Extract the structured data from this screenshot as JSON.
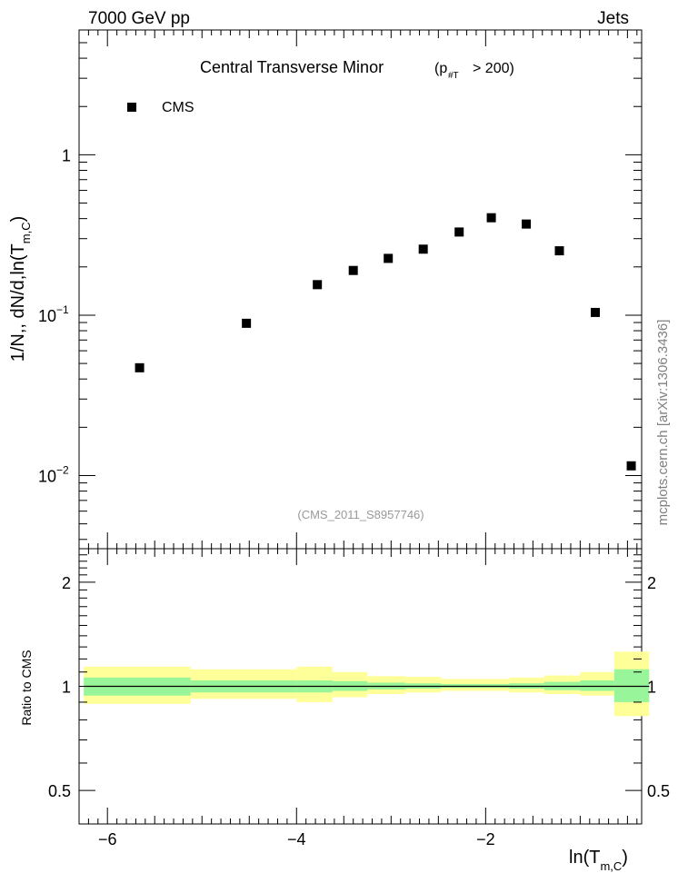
{
  "header": {
    "left": "7000 GeV pp",
    "right": "Jets"
  },
  "plot_title": {
    "main": "Central Transverse Minor",
    "cut_open": "(p",
    "cut_sub": "#T",
    "cut_close": "> 200)"
  },
  "legend": {
    "label": "CMS",
    "marker": "filled-square"
  },
  "watermark": "(CMS_2011_S8957746)",
  "side_label": "mcplots.cern.ch [arXiv:1306.3436]",
  "ylabel_main": {
    "prefix": "1/N",
    "middle": ",, dN/d,ln(T",
    "sub": "m,C",
    "close": ")"
  },
  "ylabel_ratio": "Ratio to CMS",
  "xlabel": {
    "prefix": "ln(T",
    "sub": "m,C",
    "close": ")"
  },
  "ticks": {
    "x": [
      "−6",
      "−4",
      "−2"
    ],
    "main_y": [
      {
        "value": 1,
        "text": "1"
      },
      {
        "value": 0.1,
        "base": "10",
        "exp": "−1"
      },
      {
        "value": 0.01,
        "base": "10",
        "exp": "−2"
      }
    ],
    "ratio_y": [
      {
        "value": 2,
        "text": "2"
      },
      {
        "value": 1,
        "text": "1"
      },
      {
        "value": 0.5,
        "text": "0.5"
      }
    ]
  },
  "colors": {
    "marker": "#000000",
    "band_inner": "#99f599",
    "band_outer": "#ffff99",
    "watermark": "#999999",
    "side_label": "#808080"
  },
  "chart_data": [
    {
      "type": "scatter",
      "title": "Central Transverse Minor (p#T > 200)",
      "xlabel": "ln(Tm,C)",
      "ylabel": "1/N ,, dN/d,ln(Tm,C)",
      "yscale": "log",
      "xlim": [
        -6.3,
        -0.35
      ],
      "ylim": [
        0.0035,
        6
      ],
      "series": [
        {
          "name": "CMS",
          "x": [
            -5.66,
            -4.53,
            -3.78,
            -3.4,
            -3.03,
            -2.66,
            -2.28,
            -1.94,
            -1.57,
            -1.22,
            -0.84,
            -0.46
          ],
          "y": [
            0.047,
            0.089,
            0.155,
            0.19,
            0.226,
            0.258,
            0.33,
            0.405,
            0.37,
            0.252,
            0.104,
            0.0115
          ]
        }
      ]
    },
    {
      "type": "area",
      "ylabel": "Ratio to CMS",
      "xlabel": "ln(Tm,C)",
      "xlim": [
        -6.3,
        -0.35
      ],
      "ylim": [
        0.4,
        2.5
      ],
      "yscale": "log",
      "bins": [
        [
          -6.25,
          -5.12
        ],
        [
          -5.12,
          -4.0
        ],
        [
          -4.0,
          -3.62
        ],
        [
          -3.62,
          -3.25
        ],
        [
          -3.25,
          -2.85
        ],
        [
          -2.85,
          -2.47
        ],
        [
          -2.47,
          -2.1
        ],
        [
          -2.1,
          -1.75
        ],
        [
          -1.75,
          -1.38
        ],
        [
          -1.38,
          -1.0
        ],
        [
          -1.0,
          -0.64
        ],
        [
          -0.64,
          -0.27
        ]
      ],
      "inner_band": [
        [
          0.94,
          1.06
        ],
        [
          0.96,
          1.04
        ],
        [
          0.96,
          1.04
        ],
        [
          0.97,
          1.035
        ],
        [
          0.98,
          1.025
        ],
        [
          0.985,
          1.02
        ],
        [
          0.99,
          1.015
        ],
        [
          0.99,
          1.015
        ],
        [
          0.985,
          1.02
        ],
        [
          0.975,
          1.03
        ],
        [
          0.97,
          1.04
        ],
        [
          0.9,
          1.12
        ]
      ],
      "outer_band": [
        [
          0.89,
          1.14
        ],
        [
          0.92,
          1.12
        ],
        [
          0.9,
          1.14
        ],
        [
          0.93,
          1.1
        ],
        [
          0.95,
          1.07
        ],
        [
          0.96,
          1.065
        ],
        [
          0.97,
          1.05
        ],
        [
          0.97,
          1.05
        ],
        [
          0.96,
          1.06
        ],
        [
          0.95,
          1.075
        ],
        [
          0.94,
          1.1
        ],
        [
          0.82,
          1.26
        ]
      ],
      "reference_line": 1.0
    }
  ]
}
